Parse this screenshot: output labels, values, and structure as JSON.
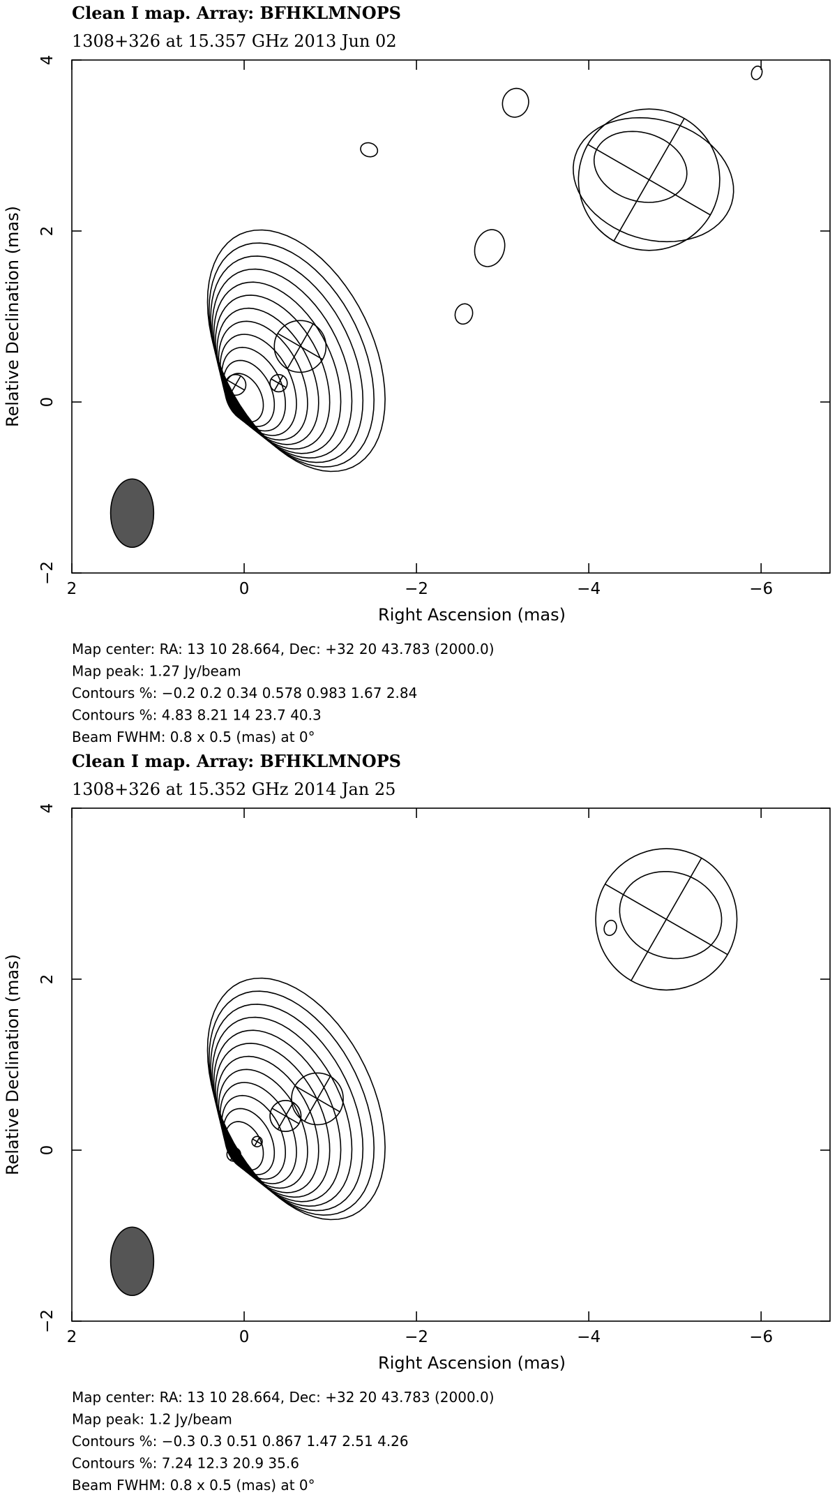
{
  "chart_data": [
    {
      "type": "contour",
      "title": "Clean I map.  Array:  BFHKLMNOPS",
      "subtitle": "1308+326 at 15.357 GHz 2013 Jun 02",
      "xlabel": "Right Ascension  (mas)",
      "ylabel": "Relative Declination  (mas)",
      "xlim": [
        2,
        -6.8
      ],
      "ylim": [
        -2,
        4
      ],
      "xticks": [
        2,
        0,
        {
          "value": -2,
          "label": "−2"
        },
        {
          "value": -4,
          "label": "−4"
        },
        {
          "value": -6,
          "label": "−6"
        }
      ],
      "yticks": [
        {
          "value": -2,
          "label": "−2"
        },
        0,
        2,
        4
      ],
      "notes": [
        "Map center:  RA: 13 10 28.664,  Dec: +32 20 43.783 (2000.0)",
        "Map peak: 1.27 Jy/beam",
        "Contours %: −0.2 0.2 0.34 0.578 0.983 1.67 2.84",
        "Contours %: 4.83 8.21 14 23.7 40.3",
        "Beam FWHM: 0.8 x 0.5 (mas) at 0°"
      ]
    },
    {
      "type": "contour",
      "title": "Clean I map.  Array:  BFHKLMNOPS",
      "subtitle": "1308+326 at 15.352 GHz 2014 Jan 25",
      "xlabel": "Right Ascension  (mas)",
      "ylabel": "Relative Declination  (mas)",
      "xlim": [
        2,
        -6.8
      ],
      "ylim": [
        -2,
        4
      ],
      "xticks": [
        2,
        0,
        {
          "value": -2,
          "label": "−2"
        },
        {
          "value": -4,
          "label": "−4"
        },
        {
          "value": -6,
          "label": "−6"
        }
      ],
      "yticks": [
        {
          "value": -2,
          "label": "−2"
        },
        0,
        2,
        4
      ],
      "notes": [
        "Map center:  RA: 13 10 28.664,  Dec: +32 20 43.783 (2000.0)",
        "Map peak: 1.2 Jy/beam",
        "Contours %: −0.3 0.3 0.51 0.867 1.47 2.51 4.26",
        "Contours %: 7.24 12.3 20.9 35.6",
        "Beam FWHM: 0.8 x 0.5 (mas) at 0°"
      ]
    }
  ]
}
